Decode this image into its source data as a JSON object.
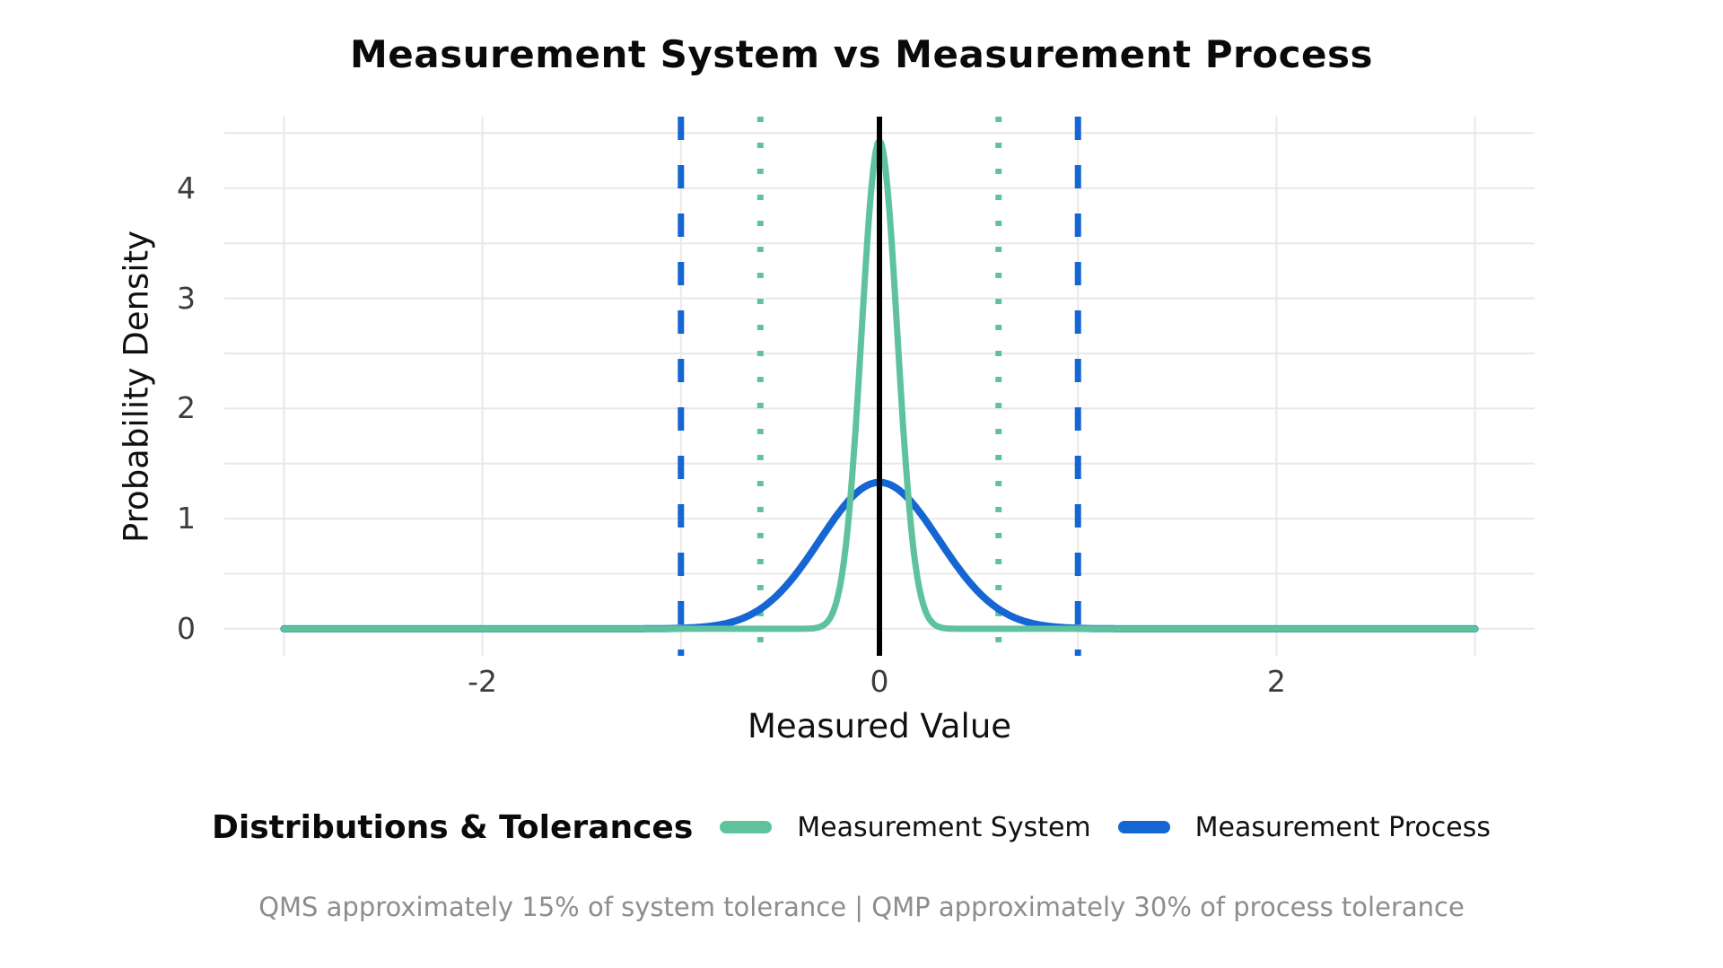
{
  "title": "Measurement System vs Measurement Process",
  "axes": {
    "x": {
      "label": "Measured Value",
      "ticks": [
        -2,
        0,
        2
      ]
    },
    "y": {
      "label": "Probability Density",
      "ticks": [
        0,
        1,
        2,
        3,
        4
      ]
    }
  },
  "chart_data": {
    "type": "line",
    "title": "Measurement System vs Measurement Process",
    "xlabel": "Measured Value",
    "ylabel": "Probability Density",
    "x_data_range": [
      -3,
      3
    ],
    "xlim": [
      -3.3,
      3.3
    ],
    "ylim": [
      -0.245,
      4.65
    ],
    "grid": {
      "on": true,
      "color": "#e8e8e8",
      "x_lines": [
        -3,
        -2,
        -1,
        0,
        1,
        2,
        3
      ],
      "y_lines": [
        0,
        0.5,
        1,
        1.5,
        2,
        2.5,
        3,
        3.5,
        4,
        4.5
      ]
    },
    "series": [
      {
        "name": "Measurement System",
        "curve": "normal_pdf",
        "mean": 0,
        "sigma": 0.09,
        "peak_density": 4.43,
        "color": "#5ec39d",
        "stroke_width": 7
      },
      {
        "name": "Measurement Process",
        "curve": "normal_pdf",
        "mean": 0,
        "sigma": 0.3,
        "peak_density": 1.33,
        "color": "#1565d3",
        "stroke_width": 8
      }
    ],
    "reference_lines": [
      {
        "x": -1,
        "style": "dashed",
        "color": "#1565d3",
        "width": 7,
        "role": "process-tolerance-lower"
      },
      {
        "x": 1,
        "style": "dashed",
        "color": "#1565d3",
        "width": 7,
        "role": "process-tolerance-upper"
      },
      {
        "x": -0.6,
        "style": "dotted",
        "color": "#5ec39d",
        "width": 7,
        "role": "system-tolerance-lower"
      },
      {
        "x": 0.6,
        "style": "dotted",
        "color": "#5ec39d",
        "width": 7,
        "role": "system-tolerance-upper"
      },
      {
        "x": 0,
        "style": "solid",
        "color": "#000000",
        "width": 6,
        "role": "target-center"
      }
    ],
    "legend_position": "bottom"
  },
  "legend": {
    "title": "Distributions & Tolerances",
    "items": [
      {
        "label": "Measurement System",
        "color": "#5ec39d"
      },
      {
        "label": "Measurement Process",
        "color": "#1565d3"
      }
    ]
  },
  "footnote": "QMS approximately 15% of system tolerance | QMP approximately 30% of process tolerance"
}
